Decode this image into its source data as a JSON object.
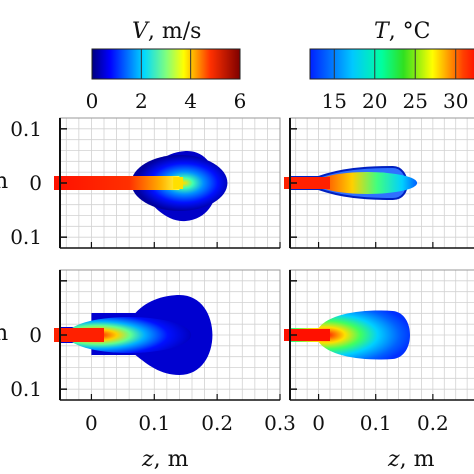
{
  "colorbar_velocity": {
    "title_var": "V",
    "title_unit": ", m/s",
    "ticks": [
      "0",
      "2",
      "4",
      "6"
    ],
    "range": [
      0,
      6
    ]
  },
  "colorbar_temperature": {
    "title_var": "T",
    "title_unit": ", °C",
    "ticks": [
      "15",
      "20",
      "25",
      "30"
    ],
    "range": [
      12,
      33
    ]
  },
  "xlabel_left": {
    "var": "z",
    "unit": ", m"
  },
  "xlabel_right": {
    "var": "z",
    "unit": ", m"
  },
  "ylabel_fragments": [
    "n",
    "n"
  ],
  "chart_data": [
    {
      "type": "heatmap",
      "panel": "top-left",
      "quantity": "V",
      "x_ticks": [],
      "y_ticks": [
        "0.1",
        "0",
        "0.1"
      ],
      "xlim": [
        -0.05,
        0.3
      ],
      "ylim": [
        -0.12,
        0.12
      ]
    },
    {
      "type": "heatmap",
      "panel": "top-right",
      "quantity": "T",
      "x_ticks": [],
      "y_ticks": [],
      "xlim": [
        -0.05,
        0.3
      ],
      "ylim": [
        -0.12,
        0.12
      ]
    },
    {
      "type": "heatmap",
      "panel": "bottom-left",
      "quantity": "V",
      "x_ticks": [
        "0",
        "0.1",
        "0.2",
        "0.3"
      ],
      "y_ticks": [
        "0",
        "0.1"
      ],
      "xlim": [
        -0.05,
        0.3
      ],
      "ylim": [
        -0.12,
        0.12
      ]
    },
    {
      "type": "heatmap",
      "panel": "bottom-right",
      "quantity": "T",
      "x_ticks": [
        "0",
        "0.1",
        "0.2"
      ],
      "y_ticks": [],
      "xlim": [
        -0.05,
        0.3
      ],
      "ylim": [
        -0.12,
        0.12
      ]
    }
  ]
}
